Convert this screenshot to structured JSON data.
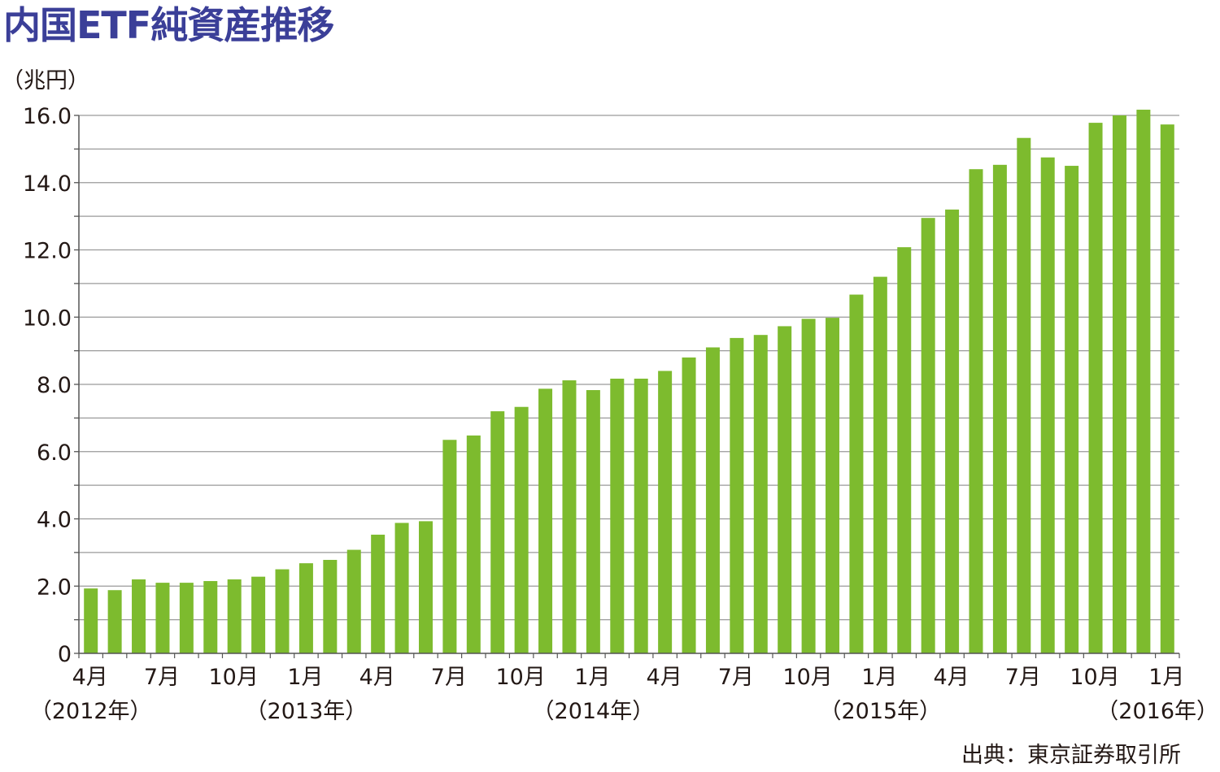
{
  "chart_data": {
    "type": "bar",
    "title": "内国ETF純資産推移",
    "ylabel": "（兆円）",
    "ylim": [
      0,
      16
    ],
    "yticks": [
      "0",
      "2.0",
      "4.0",
      "6.0",
      "8.0",
      "10.0",
      "12.0",
      "14.0",
      "16.0"
    ],
    "ytick_values": [
      0,
      2,
      4,
      6,
      8,
      10,
      12,
      14,
      16
    ],
    "grid": true,
    "bar_color": "#7dbb2e",
    "categories": [
      "2012-04",
      "2012-05",
      "2012-06",
      "2012-07",
      "2012-08",
      "2012-09",
      "2012-10",
      "2012-11",
      "2012-12",
      "2013-01",
      "2013-02",
      "2013-03",
      "2013-04",
      "2013-05",
      "2013-06",
      "2013-07",
      "2013-08",
      "2013-09",
      "2013-10",
      "2013-11",
      "2013-12",
      "2014-01",
      "2014-02",
      "2014-03",
      "2014-04",
      "2014-05",
      "2014-06",
      "2014-07",
      "2014-08",
      "2014-09",
      "2014-10",
      "2014-11",
      "2014-12",
      "2015-01",
      "2015-02",
      "2015-03",
      "2015-04",
      "2015-05",
      "2015-06",
      "2015-07",
      "2015-08",
      "2015-09",
      "2015-10",
      "2015-11",
      "2015-12",
      "2016-01"
    ],
    "values": [
      1.93,
      1.88,
      2.2,
      2.1,
      2.1,
      2.15,
      2.2,
      2.28,
      2.5,
      2.68,
      2.78,
      3.08,
      3.53,
      3.88,
      3.93,
      6.35,
      6.48,
      7.2,
      7.33,
      7.87,
      8.12,
      7.83,
      8.17,
      8.17,
      8.4,
      8.8,
      9.1,
      9.38,
      9.47,
      9.73,
      9.95,
      9.98,
      10.67,
      11.2,
      12.08,
      12.95,
      13.2,
      14.4,
      14.53,
      15.33,
      14.75,
      14.5,
      15.78,
      16.0,
      16.17,
      15.73
    ],
    "xtick_labels": [
      {
        "index": 0,
        "text": "4月"
      },
      {
        "index": 3,
        "text": "7月"
      },
      {
        "index": 6,
        "text": "10月"
      },
      {
        "index": 9,
        "text": "1月"
      },
      {
        "index": 12,
        "text": "4月"
      },
      {
        "index": 15,
        "text": "7月"
      },
      {
        "index": 18,
        "text": "10月"
      },
      {
        "index": 21,
        "text": "1月"
      },
      {
        "index": 24,
        "text": "4月"
      },
      {
        "index": 27,
        "text": "7月"
      },
      {
        "index": 30,
        "text": "10月"
      },
      {
        "index": 33,
        "text": "1月"
      },
      {
        "index": 36,
        "text": "4月"
      },
      {
        "index": 39,
        "text": "7月"
      },
      {
        "index": 42,
        "text": "10月"
      },
      {
        "index": 45,
        "text": "1月"
      }
    ],
    "year_labels": [
      {
        "index": 0,
        "text": "（2012年）"
      },
      {
        "index": 9,
        "text": "（2013年）"
      },
      {
        "index": 21,
        "text": "（2014年）"
      },
      {
        "index": 33,
        "text": "（2015年）"
      },
      {
        "index": 45,
        "text": "（2016年）"
      }
    ],
    "source": "出典：東京証券取引所"
  }
}
